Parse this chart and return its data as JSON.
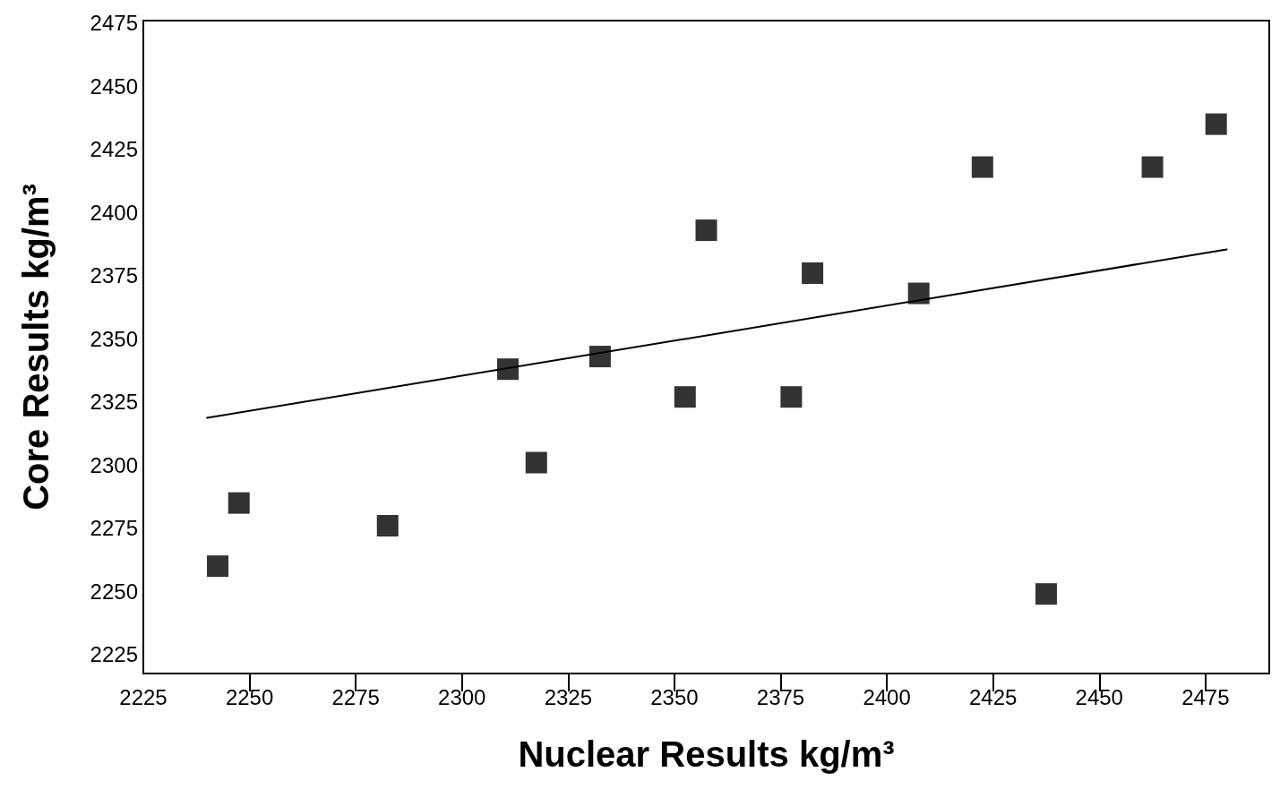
{
  "chart_data": {
    "type": "scatter",
    "xlabel": "Nuclear Results kg/m³",
    "ylabel": "Core Results kg/m³",
    "marker": "square",
    "grid": false,
    "xlim": [
      2225,
      2490
    ],
    "xticks": [
      2225,
      2250,
      2275,
      2300,
      2325,
      2350,
      2375,
      2400,
      2425,
      2450,
      2475
    ],
    "ylim": [
      2217.5,
      2476
    ],
    "yticks": [
      2225,
      2250,
      2275,
      2300,
      2325,
      2350,
      2375,
      2400,
      2425,
      2450,
      2475
    ],
    "series": [
      {
        "color": "#000000",
        "x": [
          2242.5,
          2247.5,
          2282.5,
          2310.8,
          2317.5,
          2332.5,
          2352.5,
          2357.5,
          2377.5,
          2382.5,
          2407.5,
          2422.5,
          2437.5,
          2462.5,
          2477.5
        ],
        "values": [
          2260,
          2285,
          2276,
          2338,
          2301,
          2343,
          2327,
          2393,
          2327,
          2376,
          2368,
          2418,
          2249,
          2418,
          2435
        ]
      },
      {
        "type": "line",
        "marker": "none",
        "color": "#000000",
        "x": [
          2240,
          2480
        ],
        "values": [
          2318.7,
          2385.4
        ]
      }
    ]
  }
}
